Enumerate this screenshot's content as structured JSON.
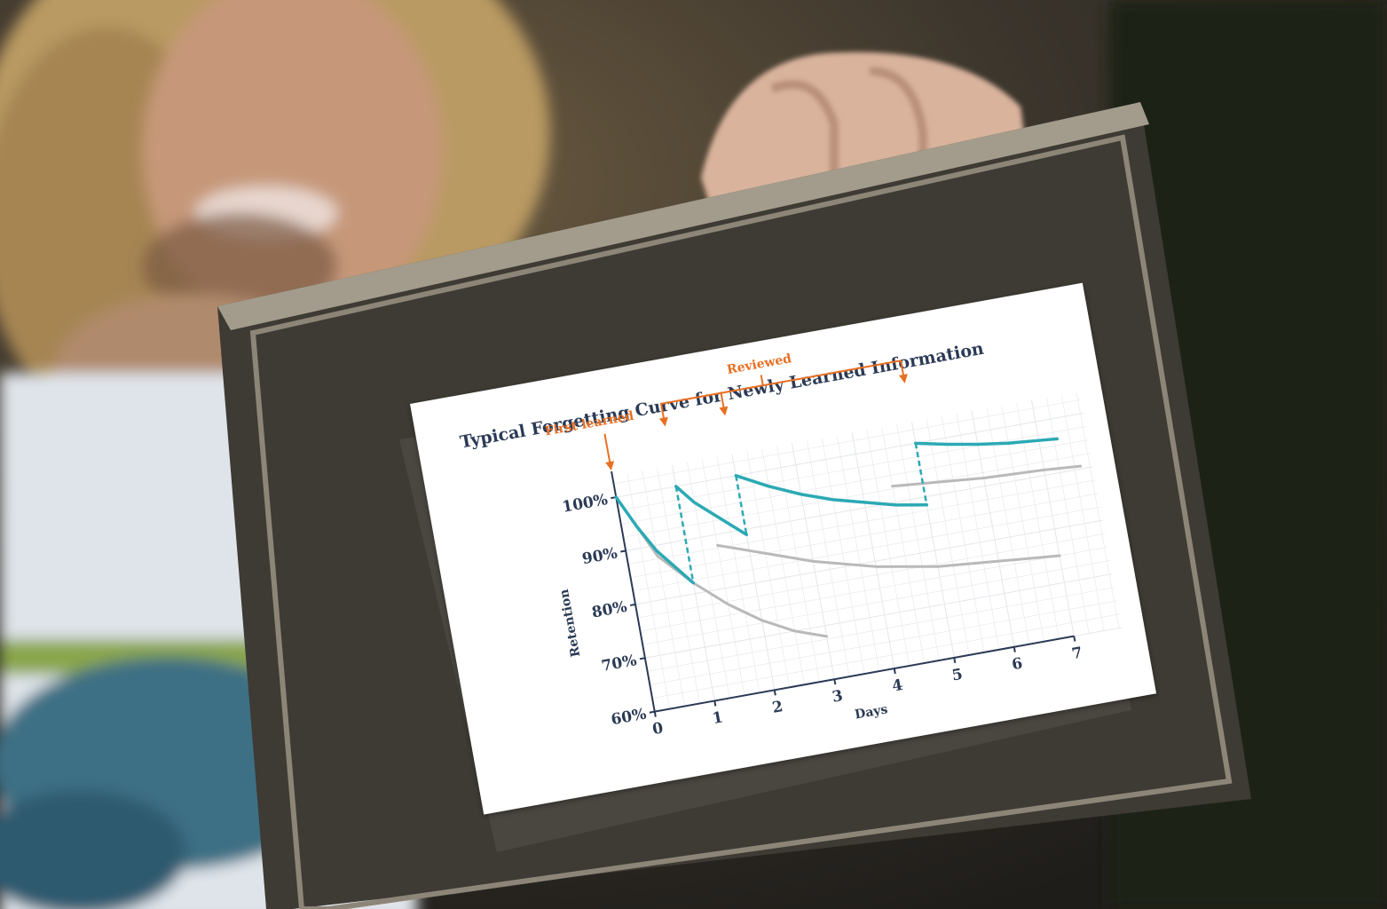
{
  "chart_data": {
    "type": "line",
    "title": "Typical Forgetting Curve for Newly Learned Information",
    "xlabel": "Days",
    "ylabel": "Retention",
    "x_ticks": [
      "0",
      "1",
      "2",
      "3",
      "4",
      "5",
      "6",
      "7"
    ],
    "y_ticks": [
      "60%",
      "70%",
      "80%",
      "90%",
      "100%"
    ],
    "xlim": [
      0,
      7.8
    ],
    "ylim": [
      60,
      104
    ],
    "grid": true,
    "annotations": {
      "first_learned": "First learned",
      "reviewed": "Reviewed"
    },
    "review_days": [
      0,
      1,
      2,
      5
    ],
    "series": [
      {
        "color": "#b9b9b9",
        "points": [
          [
            0,
            100
          ],
          [
            0.5,
            88
          ],
          [
            1,
            82
          ],
          [
            1.5,
            77
          ],
          [
            2,
            73
          ],
          [
            2.5,
            70
          ],
          [
            3,
            68
          ]
        ]
      },
      {
        "color": "#b9b9b9",
        "points": [
          [
            1.5,
            88
          ],
          [
            2,
            86
          ],
          [
            3,
            82
          ],
          [
            4,
            79
          ],
          [
            5,
            77
          ],
          [
            6,
            76
          ],
          [
            7,
            75
          ]
        ]
      },
      {
        "color": "#b9b9b9",
        "points": [
          [
            4.5,
            93
          ],
          [
            5,
            92.5
          ],
          [
            6,
            91.5
          ],
          [
            7,
            91
          ],
          [
            7.6,
            90.5
          ]
        ]
      },
      {
        "color": "#2ba9b4",
        "points": [
          [
            0,
            100
          ],
          [
            0.25,
            94
          ],
          [
            0.5,
            89
          ],
          [
            0.75,
            85.5
          ],
          [
            1,
            82
          ]
        ]
      },
      {
        "color": "#2ba9b4",
        "points": [
          [
            1,
            100
          ],
          [
            1.25,
            96.5
          ],
          [
            1.5,
            94
          ],
          [
            2,
            89
          ]
        ]
      },
      {
        "color": "#2ba9b4",
        "points": [
          [
            2,
            100
          ],
          [
            2.5,
            97
          ],
          [
            3,
            94.5
          ],
          [
            3.5,
            92.5
          ],
          [
            4,
            91
          ],
          [
            4.5,
            89.5
          ],
          [
            5,
            88.5
          ]
        ]
      },
      {
        "color": "#2ba9b4",
        "points": [
          [
            5,
            100
          ],
          [
            5.5,
            98.8
          ],
          [
            6,
            97.8
          ],
          [
            6.5,
            97
          ],
          [
            7,
            96.5
          ],
          [
            7.3,
            96.2
          ]
        ]
      }
    ],
    "drop_lines": [
      [
        1,
        82
      ],
      [
        2,
        89
      ],
      [
        5,
        88.5
      ]
    ]
  },
  "colors": {
    "accent": "#e86f22",
    "title": "#2b3a55",
    "axis": "#2b3a55",
    "teal": "#2ba9b4",
    "gray": "#b9b9b9",
    "grid": "#e3e6ea"
  },
  "scene": {
    "background": "blurred photo of a smiling man holding an old wooden picture frame",
    "frame_color": "#3a3630"
  }
}
